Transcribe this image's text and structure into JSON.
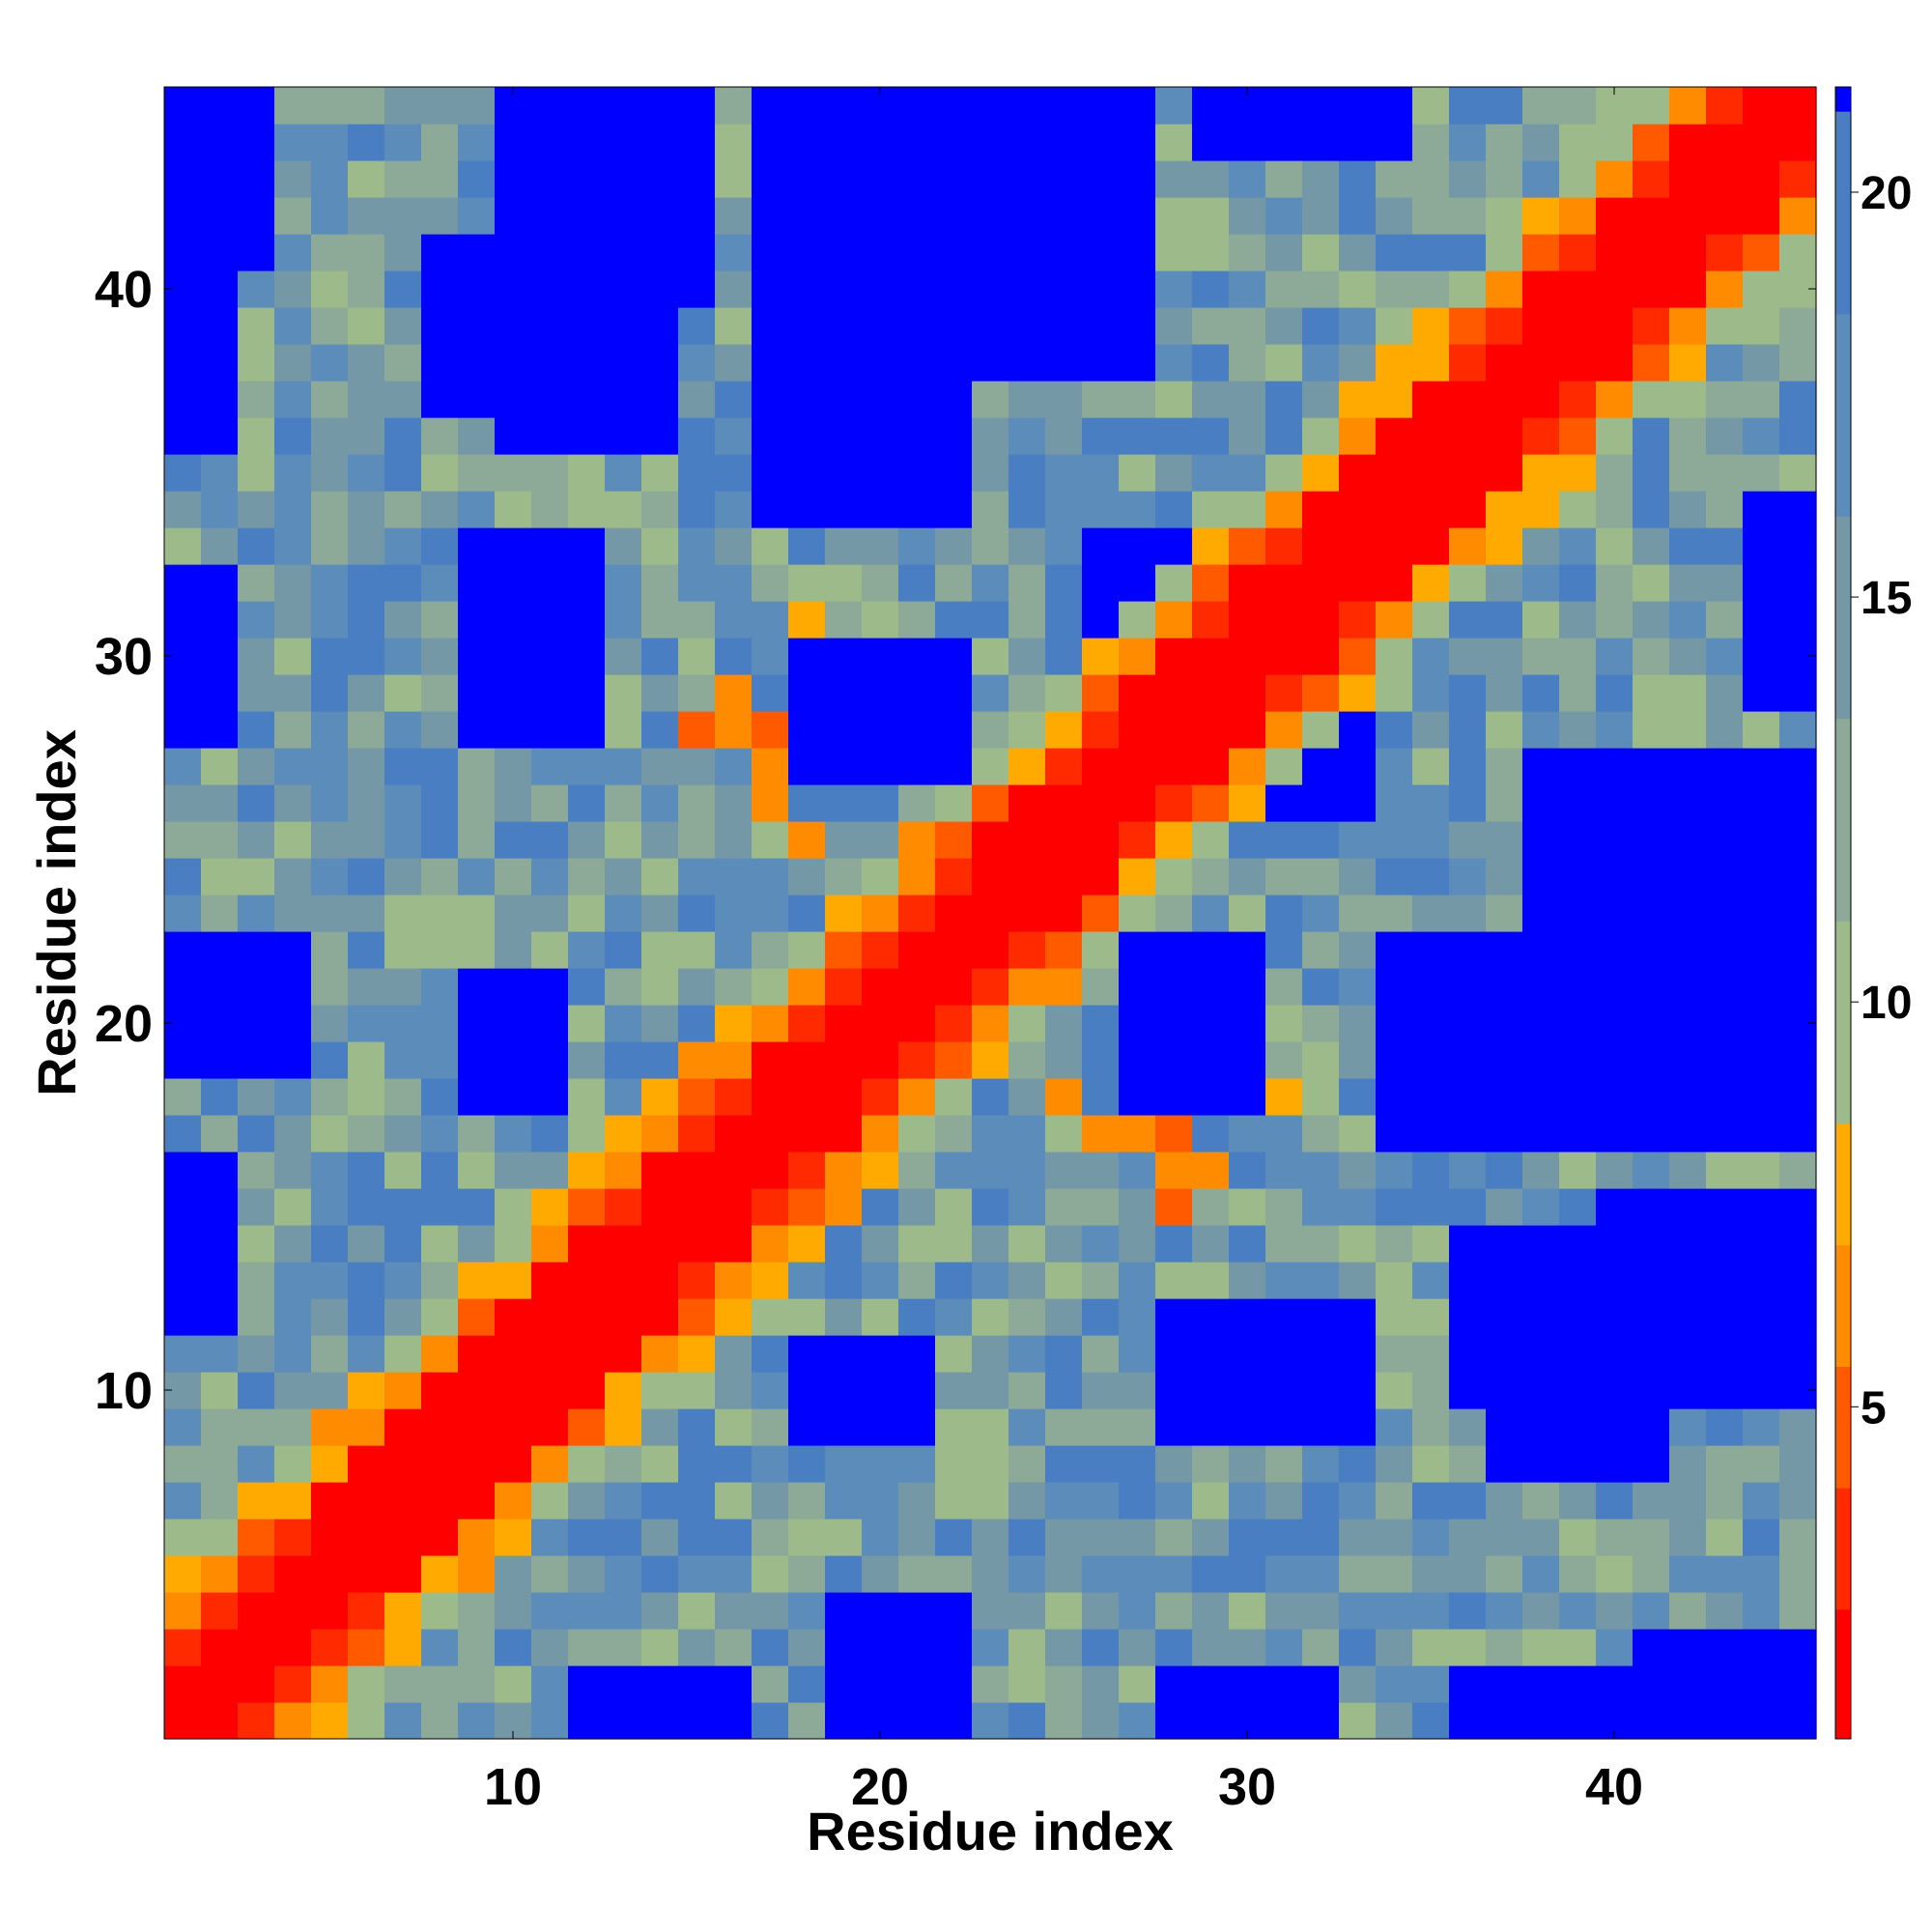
{
  "chart_data": {
    "type": "heatmap",
    "title": "",
    "xlabel": "Residue index",
    "ylabel": "Residue index",
    "n_residues": 45,
    "x_range": [
      0.5,
      45.5
    ],
    "y_range": [
      0.5,
      45.5
    ],
    "x_ticks": [
      10,
      20,
      30,
      40
    ],
    "y_ticks": [
      10,
      20,
      30,
      40
    ],
    "colorbar": {
      "range": [
        0.9,
        21.3
      ],
      "ticks": [
        5,
        10,
        15,
        20
      ],
      "bins": [
        {
          "from": 0.9,
          "to": 2.5,
          "color": "#ff0000"
        },
        {
          "from": 2.5,
          "to": 4.0,
          "color": "#ff2a00"
        },
        {
          "from": 4.0,
          "to": 5.5,
          "color": "#ff5a00"
        },
        {
          "from": 5.5,
          "to": 7.0,
          "color": "#ff8c00"
        },
        {
          "from": 7.0,
          "to": 8.5,
          "color": "#ffaa00"
        },
        {
          "from": 8.5,
          "to": 11.0,
          "color": "#9dbb8a"
        },
        {
          "from": 11.0,
          "to": 13.5,
          "color": "#8daa98"
        },
        {
          "from": 13.5,
          "to": 16.0,
          "color": "#7498a6"
        },
        {
          "from": 16.0,
          "to": 18.5,
          "color": "#5c8cba"
        },
        {
          "from": 18.5,
          "to": 21.0,
          "color": "#4a7ec2"
        },
        {
          "from": 21.0,
          "to": 21.3,
          "color": "#0000ff"
        }
      ]
    },
    "cells_note": "Distance matrix between residue pairs (symmetric); values estimated from color bins.",
    "blue_blocks": [
      [
        1,
        2,
        12,
        16
      ],
      [
        1,
        2,
        28,
        32
      ],
      [
        1,
        2,
        36,
        39
      ],
      [
        1,
        2,
        41,
        45
      ],
      [
        17,
        22,
        34,
        45
      ],
      [
        18,
        22,
        27,
        30
      ],
      [
        19,
        22,
        1,
        4
      ],
      [
        23,
        27,
        38,
        45
      ],
      [
        28,
        33,
        9,
        12
      ],
      [
        30,
        33,
        26,
        30
      ],
      [
        38,
        45,
        17,
        25
      ],
      [
        41,
        45,
        1,
        3
      ],
      [
        9,
        11,
        18,
        21
      ],
      [
        8,
        10,
        37,
        41
      ],
      [
        36,
        44,
        10,
        14
      ],
      [
        29,
        34,
        44,
        45
      ],
      [
        40,
        45,
        10,
        15
      ],
      [
        40,
        44,
        1,
        2
      ]
    ]
  }
}
